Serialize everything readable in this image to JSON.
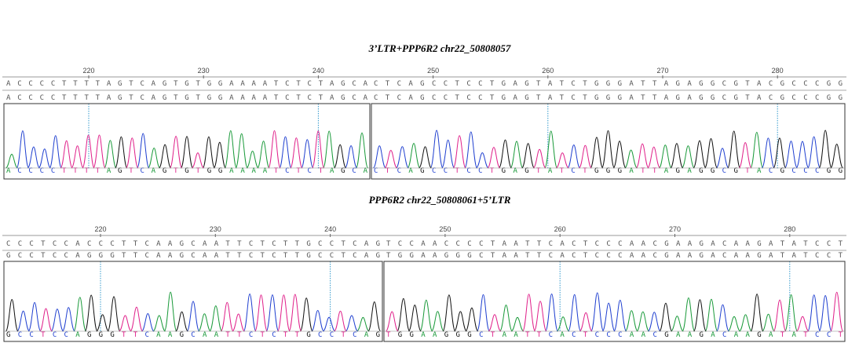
{
  "panels": [
    {
      "title": "3’LTR+PPP6R2  chr22_50808057",
      "positions": [
        "220",
        "230",
        "240",
        "250",
        "260",
        "270",
        "280"
      ],
      "rows": [
        [
          "ACCCCTTTTAGTCAGTGTGGAAAATCTCTAGCA",
          "CTCAGCCTCCTGAGTATCTGGGATTAGAGGCGTACGCCCGG"
        ],
        [
          "ACCCCTTTTAGTCAGTGTGGAAAATCTCTAGCA",
          "CTCAGCCTCCTGAGTATCTGGGATTAGAGGCGTACGCCCGG"
        ],
        [
          "ACCCCTTTTAGTCAGTGTGGAAAATCTCTAGCA",
          "CTCAGCCTCCTGAGTATCTGGGATTAGAGGCGTACGCCCGG"
        ]
      ]
    },
    {
      "title": "PPP6R2  chr22_50808061+5’LTR",
      "positions": [
        "220",
        "230",
        "240",
        "250",
        "260",
        "270",
        "280"
      ],
      "rows": [
        [
          "CCCTCCACCCTTCAAGCAATTCTCTTGCCTCAG",
          "TCCAACCCCTAATTCACTCCCAACGAAGACAAGATATCCT"
        ],
        [
          "GCCTCCAGGGTTCAAGCAATTCTCTTGCCTCAG",
          "TGGAAGGGCTAATTCACTCCCAACGAAGACAAGATATCCT"
        ],
        [
          "GCCTCCAGGGTTCAAGCAATTCTCTTGCCTCAG",
          "TGGAAGGGCTAATTCACTCCCAACGAAGACAAGATATCCT"
        ]
      ]
    }
  ]
}
